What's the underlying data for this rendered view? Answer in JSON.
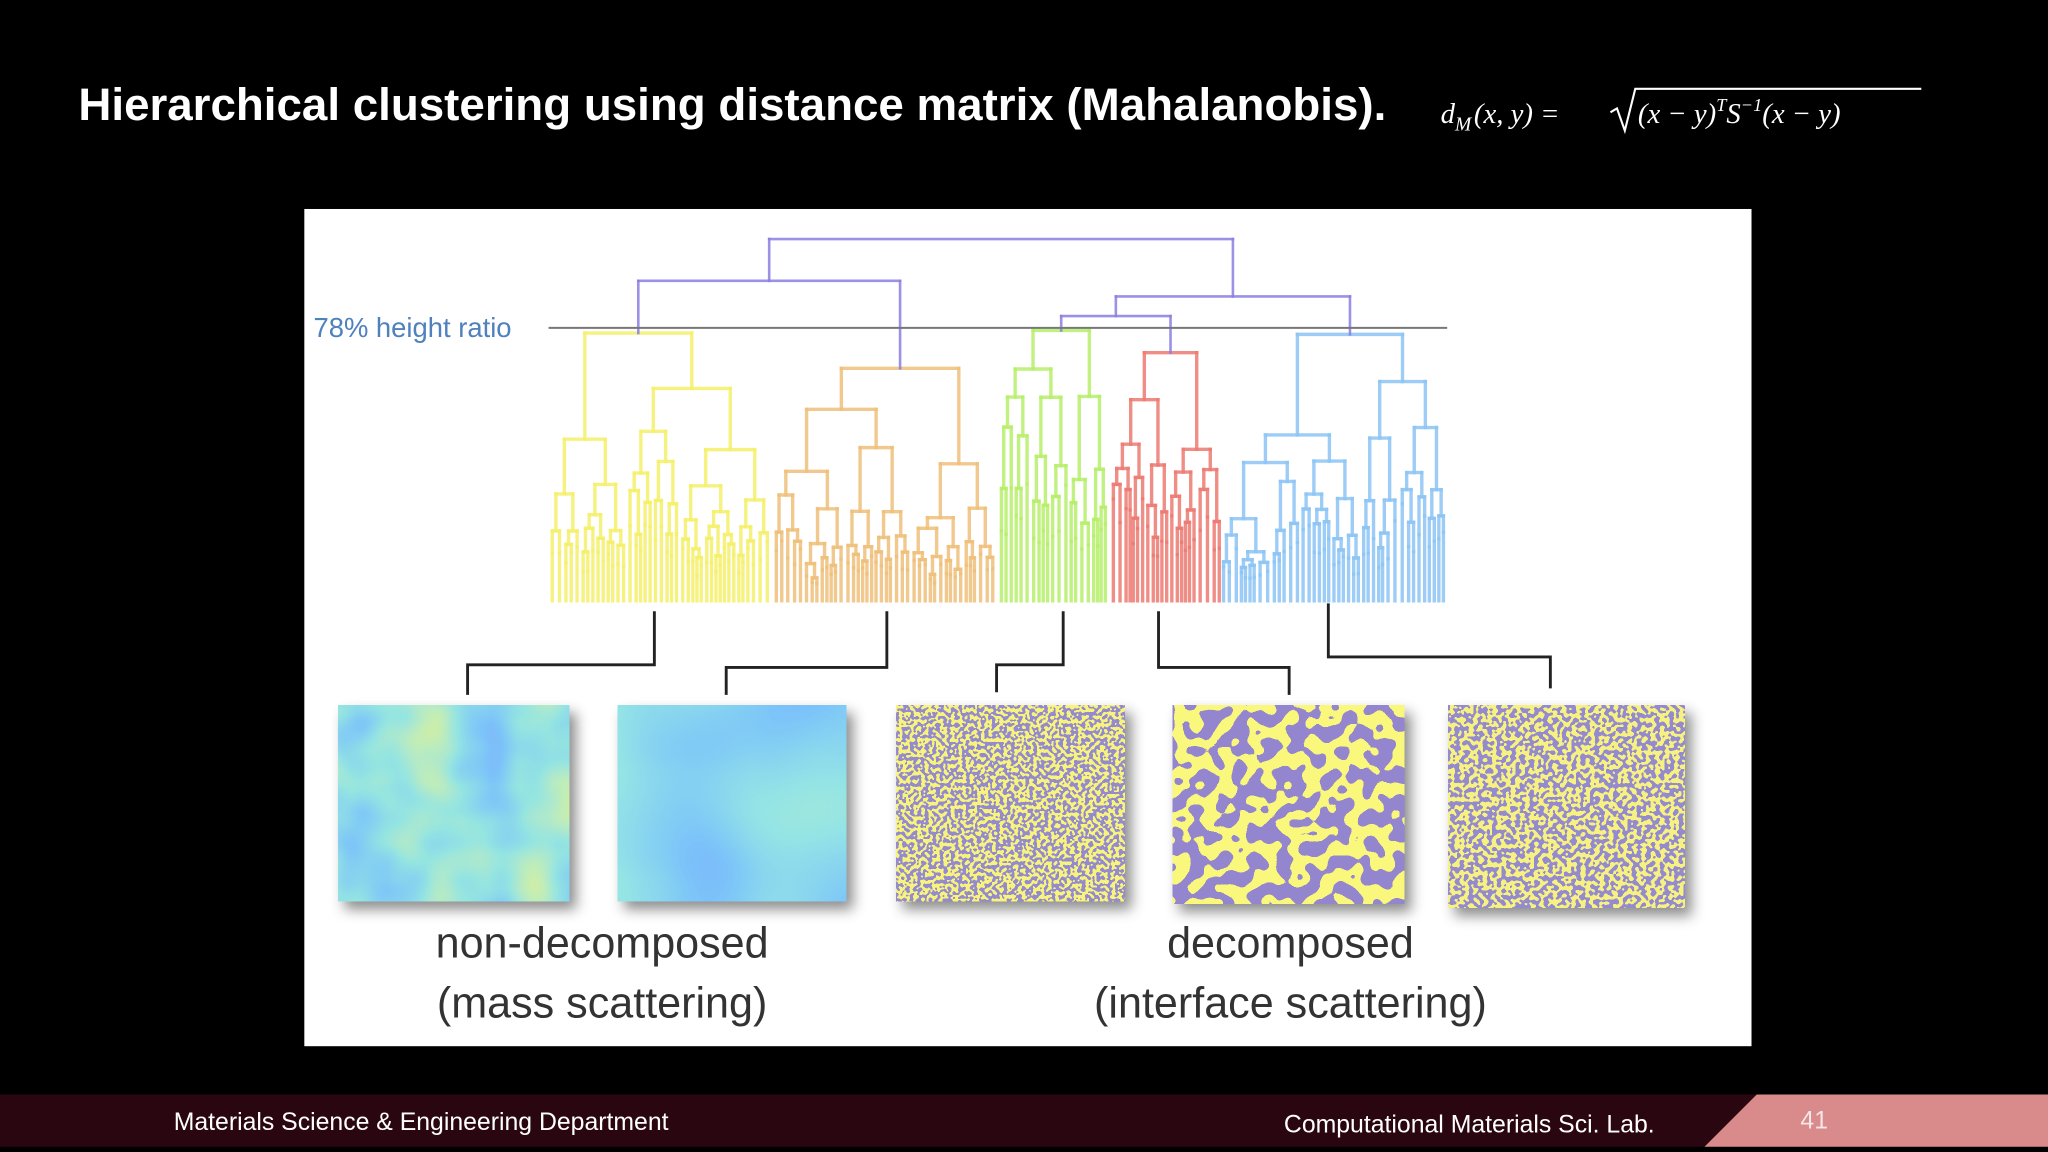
{
  "slide": {
    "title": "Hierarchical clustering using distance matrix (Mahalanobis).",
    "formula": {
      "d": "d",
      "sub": "M",
      "args": "(x, y) =",
      "radicand_a": "(x − y)",
      "sup_t": "T",
      "s": "S",
      "sup_inv": "−1",
      "radicand_b": "(x − y)"
    }
  },
  "figure": {
    "threshold_label": "78% height ratio",
    "groups": [
      {
        "label": "non-decomposed",
        "sublabel": "(mass scattering)"
      },
      {
        "label": "decomposed",
        "sublabel": "(interface scattering)"
      }
    ]
  },
  "footer": {
    "department": "Materials Science & Engineering Department",
    "lab": "Computational Materials Sci. Lab.",
    "page": "41"
  }
}
